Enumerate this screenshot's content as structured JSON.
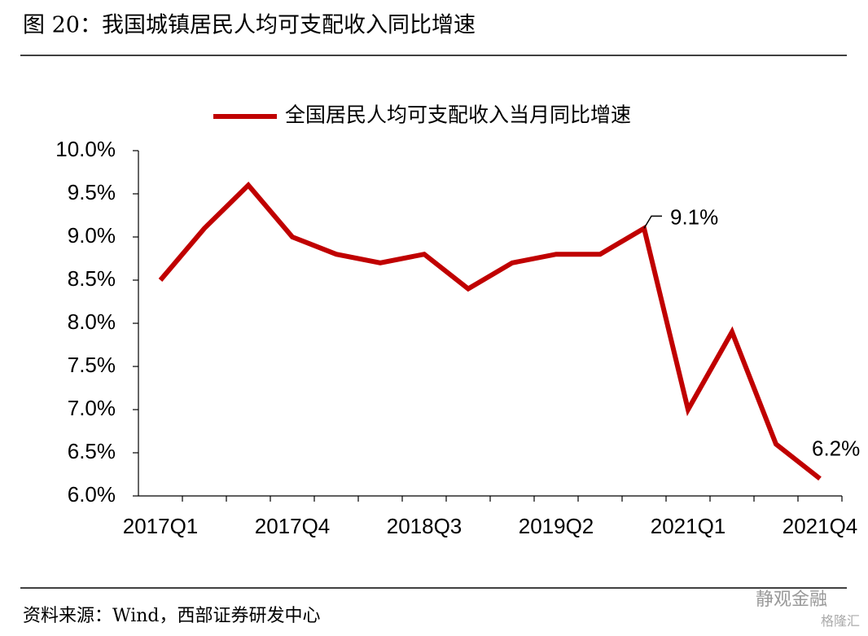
{
  "title": "图 20：我国城镇居民人均可支配收入同比增速",
  "source": "资料来源：Wind，西部证券研发中心",
  "watermark": "静观金融",
  "watermark_sub": "格隆汇",
  "chart_data": {
    "type": "line",
    "categories": [
      "2017Q1",
      null,
      null,
      "2017Q4",
      null,
      null,
      "2018Q3",
      null,
      null,
      "2019Q2",
      null,
      null,
      "2021Q1",
      null,
      null,
      "2021Q4"
    ],
    "series": [
      {
        "name": "全国居民人均可支配收入当月同比增速",
        "color": "#c00000",
        "values": [
          8.5,
          9.1,
          9.6,
          9.0,
          8.8,
          8.7,
          8.8,
          8.4,
          8.7,
          8.8,
          8.8,
          9.1,
          7.0,
          7.9,
          6.6,
          6.2
        ],
        "value_labels": [
          null,
          null,
          null,
          null,
          null,
          null,
          null,
          null,
          null,
          null,
          null,
          "9.1%",
          null,
          null,
          null,
          "6.2%"
        ]
      }
    ],
    "ylim": [
      6,
      10
    ],
    "yticks": [
      {
        "value": 6,
        "label": "6.0%"
      },
      {
        "value": 6.5,
        "label": "6.5%"
      },
      {
        "value": 7,
        "label": "7.0%"
      },
      {
        "value": 7.5,
        "label": "7.5%"
      },
      {
        "value": 8,
        "label": "8.0%"
      },
      {
        "value": 8.5,
        "label": "8.5%"
      },
      {
        "value": 9,
        "label": "9.0%"
      },
      {
        "value": 9.5,
        "label": "9.5%"
      },
      {
        "value": 10,
        "label": "10.0%"
      }
    ],
    "grid": false,
    "legend": "top"
  }
}
